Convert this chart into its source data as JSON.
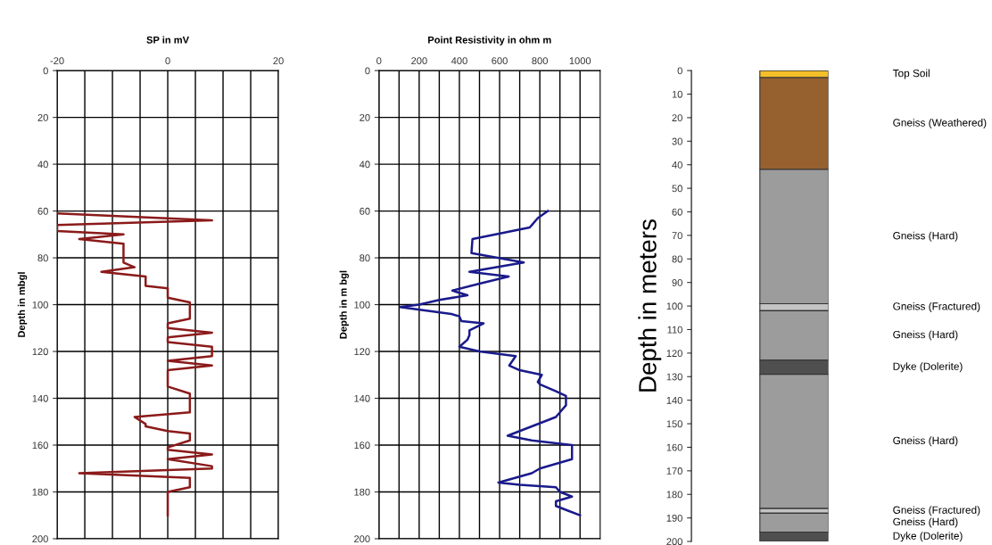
{
  "chart_data": [
    {
      "type": "line",
      "title": "SP in mV",
      "ylabel": "Depth in mbgl",
      "xlim": [
        -20,
        20
      ],
      "xticks": [
        -20,
        {
          "value": -15,
          "label": null
        },
        {
          "value": -10,
          "label": null
        },
        {
          "value": -5,
          "label": null
        },
        0,
        {
          "value": 5,
          "label": null
        },
        {
          "value": 10,
          "label": null
        },
        {
          "value": 15,
          "label": null
        },
        20
      ],
      "ylim": [
        200,
        0
      ],
      "yticks": [
        0,
        20,
        40,
        60,
        80,
        100,
        120,
        140,
        160,
        180,
        200
      ],
      "grid": true,
      "series": [
        {
          "color": "#8b1a1a",
          "x": [
            -20,
            8,
            -20,
            -20,
            -8,
            -16,
            -8,
            -8,
            -6,
            -12,
            -4,
            -4,
            0,
            0,
            4,
            4,
            4,
            0,
            0,
            8,
            0,
            0,
            8,
            8,
            0,
            8,
            0,
            0,
            4,
            4,
            -6,
            -4,
            -4,
            0,
            4,
            4,
            0,
            0,
            8,
            0,
            8,
            8,
            -16,
            4,
            4,
            0,
            0
          ],
          "values": [
            61,
            64,
            66,
            68.5,
            70,
            72,
            74,
            82,
            84,
            86,
            88,
            92,
            93,
            97,
            99,
            100,
            106,
            108,
            110,
            112,
            114,
            116,
            118,
            122,
            124,
            126,
            128,
            135,
            138,
            146,
            148,
            151,
            152,
            154,
            155,
            158,
            161,
            162,
            164,
            166,
            169,
            170,
            172,
            174,
            178,
            180,
            190
          ]
        }
      ]
    },
    {
      "type": "line",
      "title": "Point Resistivity in ohm m",
      "ylabel": "Depth in m bgl",
      "xlim": [
        0,
        1100
      ],
      "xticks": [
        0,
        {
          "value": 100,
          "label": null
        },
        200,
        {
          "value": 300,
          "label": null
        },
        400,
        {
          "value": 500,
          "label": null
        },
        600,
        {
          "value": 700,
          "label": null
        },
        800,
        {
          "value": 900,
          "label": null
        },
        1000
      ],
      "ylim": [
        200,
        0
      ],
      "yticks": [
        0,
        20,
        40,
        60,
        80,
        100,
        120,
        140,
        160,
        180,
        200
      ],
      "grid": true,
      "series": [
        {
          "color": "#1a1a8c",
          "x": [
            840,
            790,
            760,
            750,
            465,
            460,
            720,
            450,
            645,
            500,
            365,
            440,
            300,
            200,
            105,
            360,
            400,
            410,
            520,
            450,
            450,
            440,
            400,
            500,
            680,
            648,
            700,
            810,
            790,
            800,
            880,
            930,
            930,
            900,
            880,
            760,
            640,
            760,
            960,
            960,
            800,
            760,
            594,
            700,
            880,
            900,
            960,
            880,
            880,
            940,
            1000
          ],
          "values": [
            60,
            63,
            66,
            67,
            72,
            78,
            82,
            86,
            88,
            91,
            94,
            96,
            98,
            100,
            101,
            104,
            105,
            107,
            108,
            111,
            113,
            115,
            118,
            120,
            122,
            126,
            128,
            130,
            133,
            134,
            137,
            139,
            143,
            146,
            148,
            152,
            156,
            158,
            160,
            166,
            170,
            172,
            176,
            177,
            178,
            180,
            182,
            184,
            186,
            188,
            190
          ]
        }
      ]
    },
    {
      "type": "bar",
      "stacked": true,
      "ylabel": "Depth in meters",
      "categories": [
        null
      ],
      "ylim": [
        200,
        0
      ],
      "yticks": [
        0,
        10,
        20,
        30,
        40,
        50,
        60,
        70,
        80,
        90,
        100,
        110,
        120,
        130,
        140,
        150,
        160,
        170,
        180,
        190,
        200
      ],
      "tick_labels": "y",
      "series": [
        {
          "name": "Top Soil",
          "color": "#f5bf2a",
          "values": [
            3
          ]
        },
        {
          "name": "Gneiss (Weathered)",
          "color": "#96602f",
          "values": [
            39
          ]
        },
        {
          "name": "Gneiss (Hard)",
          "color": "#9c9c9c",
          "values": [
            57
          ]
        },
        {
          "name": "Gneiss (Fractured)",
          "color": "#c4c4c4",
          "values": [
            3
          ]
        },
        {
          "name": "Gneiss (Hard)",
          "color": "#9c9c9c",
          "values": [
            21
          ]
        },
        {
          "name": "Dyke (Dolerite)",
          "color": "#4f4f4f",
          "values": [
            6
          ]
        },
        {
          "name": "Gneiss (Hard)",
          "color": "#9c9c9c",
          "values": [
            57
          ]
        },
        {
          "name": "Gneiss (Fractured)",
          "color": "#c4c4c4",
          "values": [
            2
          ]
        },
        {
          "name": "Gneiss (Hard)",
          "color": "#9c9c9c",
          "values": [
            8
          ]
        },
        {
          "name": "Dyke (Dolerite)",
          "color": "#4f4f4f",
          "values": [
            4
          ]
        }
      ]
    }
  ]
}
